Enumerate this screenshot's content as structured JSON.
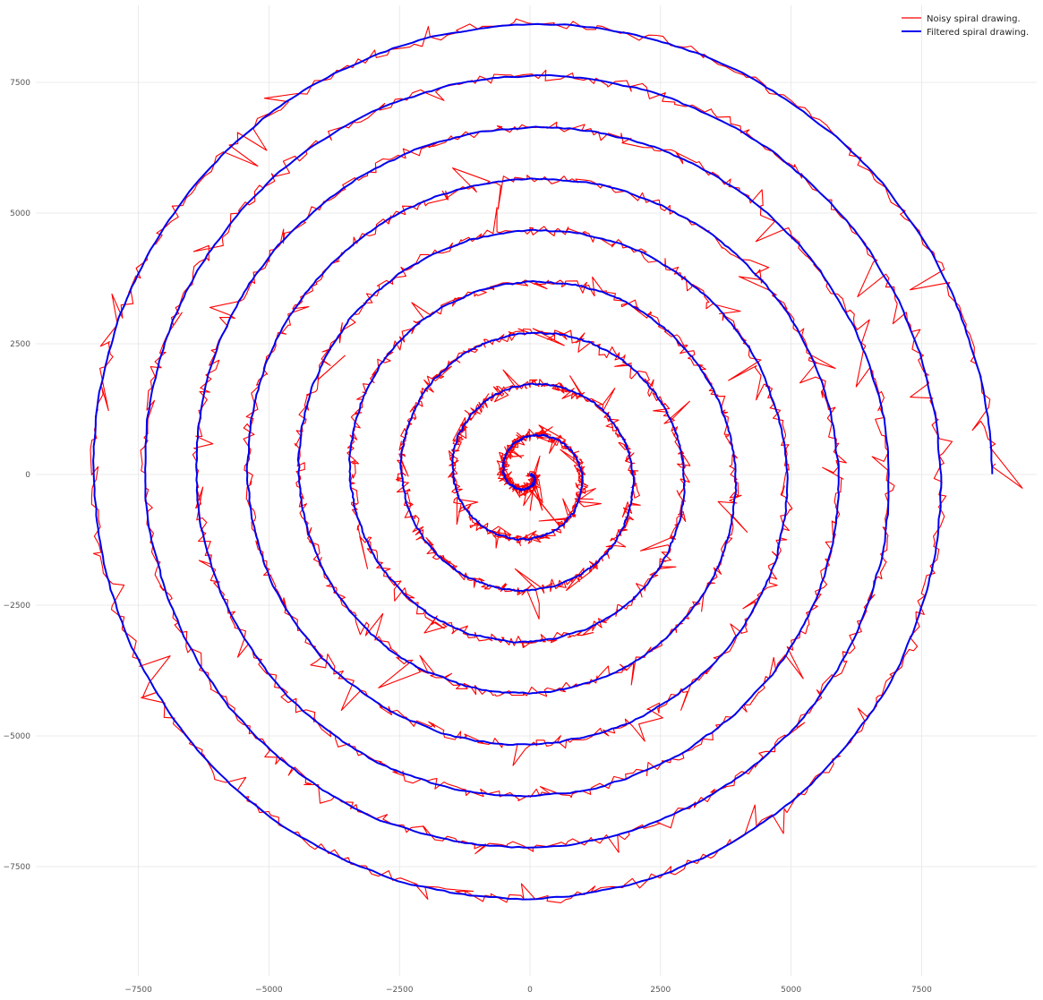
{
  "chart_data": {
    "type": "line",
    "title": "",
    "xlabel": "",
    "ylabel": "",
    "xlim": [
      -9000,
      9500
    ],
    "ylim": [
      -9500,
      8300
    ],
    "grid": true,
    "legend_position": "top-right",
    "x_ticks": [
      -7500,
      -5000,
      -2500,
      0,
      2500,
      5000,
      7500
    ],
    "y_ticks": [
      7500,
      5000,
      2500,
      0,
      -2500,
      -5000,
      -7500
    ],
    "x_tick_labels": [
      "−7500",
      "−5000",
      "−2500",
      "0",
      "2500",
      "5000",
      "7500"
    ],
    "y_tick_labels": [
      "7500",
      "5000",
      "2500",
      "0",
      "−2500",
      "−5000",
      "−7500"
    ],
    "spiral": {
      "center": [
        0,
        0
      ],
      "turns": 9,
      "radius_start": 0,
      "radius_end": 8850,
      "start_angle_deg": 0,
      "end_angle_deg": -3240
    },
    "series": [
      {
        "name": "Noisy spiral drawing.",
        "color": "#ff0000",
        "noise_amplitude": 350
      },
      {
        "name": "Filtered spiral drawing.",
        "color": "#0000ee",
        "noise_amplitude": 25
      }
    ]
  }
}
